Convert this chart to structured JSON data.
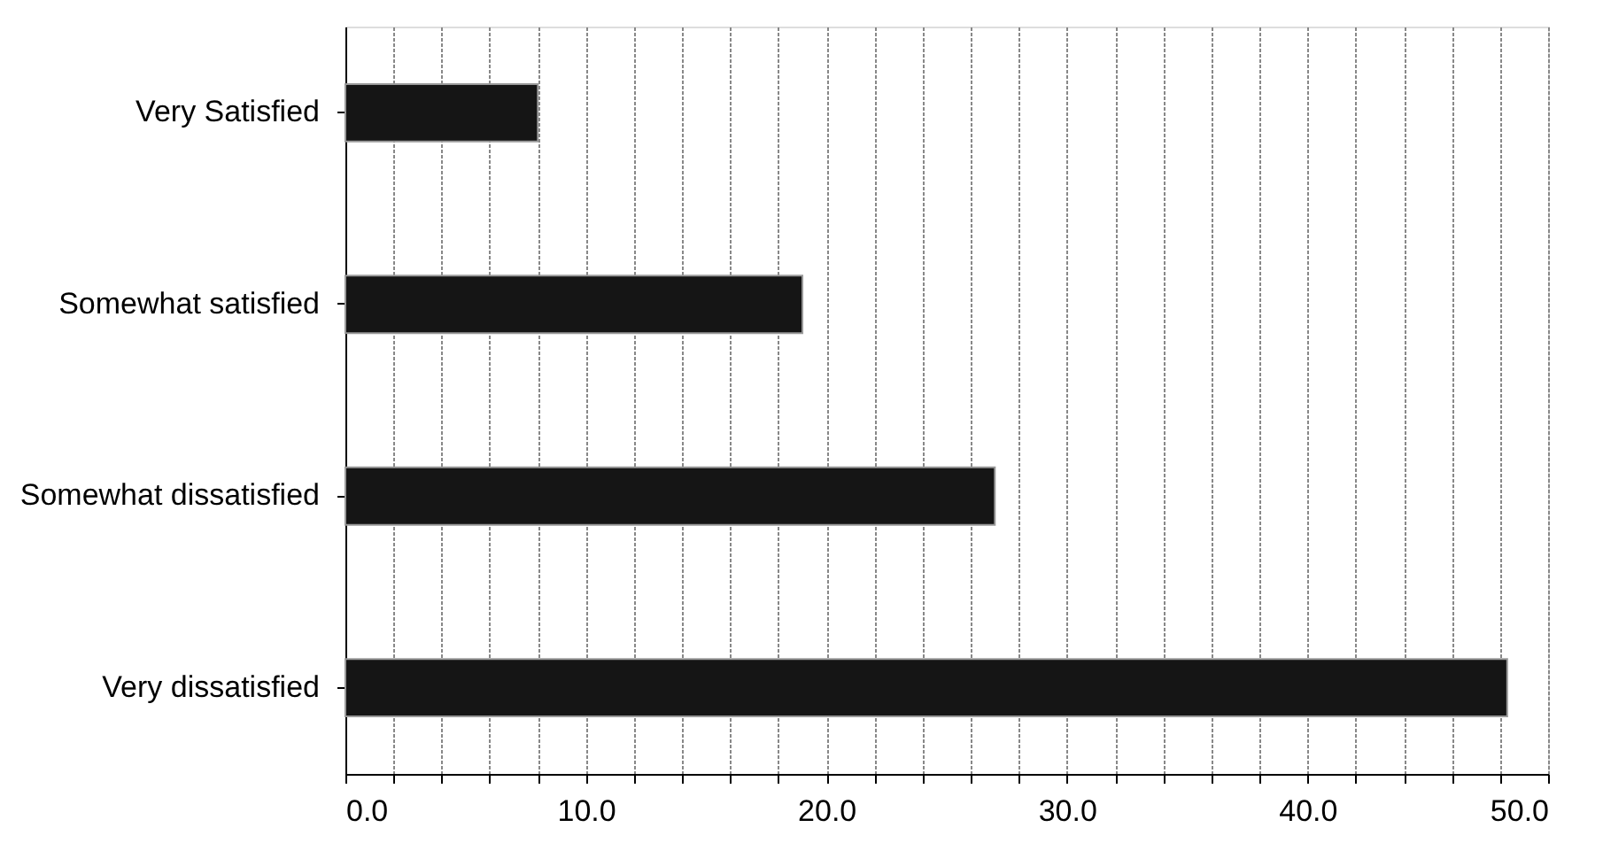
{
  "chart_data": {
    "type": "bar",
    "orientation": "horizontal",
    "categories": [
      "Very Satisfied",
      "Somewhat satisfied",
      "Somewhat dissatisfied",
      "Very dissatisfied"
    ],
    "values": [
      8.0,
      19.0,
      27.0,
      48.3
    ],
    "color": "#151515",
    "xlim": [
      0,
      50
    ],
    "xticks": [
      {
        "value": 0,
        "label": "0.0"
      },
      {
        "value": 2,
        "label": null
      },
      {
        "value": 4,
        "label": null
      },
      {
        "value": 6,
        "label": null
      },
      {
        "value": 8,
        "label": null
      },
      {
        "value": 10,
        "label": "10.0"
      },
      {
        "value": 12,
        "label": null
      },
      {
        "value": 14,
        "label": null
      },
      {
        "value": 16,
        "label": null
      },
      {
        "value": 18,
        "label": null
      },
      {
        "value": 20,
        "label": "20.0"
      },
      {
        "value": 22,
        "label": null
      },
      {
        "value": 24,
        "label": null
      },
      {
        "value": 26,
        "label": null
      },
      {
        "value": 28,
        "label": null
      },
      {
        "value": 30,
        "label": "30.0"
      },
      {
        "value": 32,
        "label": null
      },
      {
        "value": 34,
        "label": null
      },
      {
        "value": 36,
        "label": null
      },
      {
        "value": 38,
        "label": null
      },
      {
        "value": 40,
        "label": "40.0"
      },
      {
        "value": 42,
        "label": null
      },
      {
        "value": 44,
        "label": null
      },
      {
        "value": 46,
        "label": null
      },
      {
        "value": 48,
        "label": null
      },
      {
        "value": 50,
        "label": "50.0"
      }
    ],
    "grid": "x"
  }
}
